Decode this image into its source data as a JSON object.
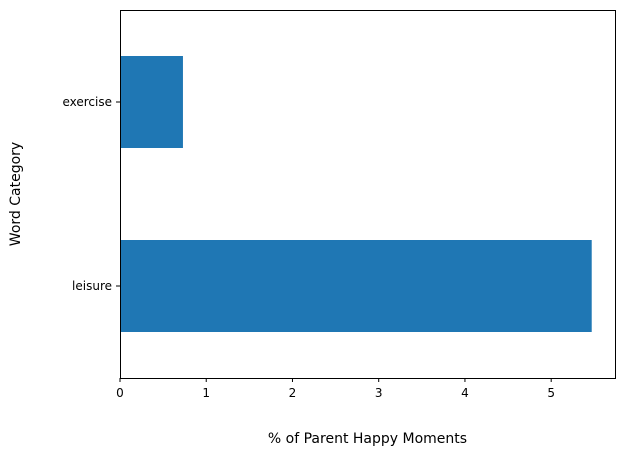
{
  "chart_data": {
    "type": "bar",
    "orientation": "horizontal",
    "categories": [
      "leisure",
      "exercise"
    ],
    "values": [
      5.47,
      0.73
    ],
    "xlabel": "% of Parent Happy Moments",
    "ylabel": "Word Category",
    "xlim": [
      0,
      5.74
    ],
    "xticks": [
      0,
      1,
      2,
      3,
      4,
      5
    ],
    "grid": false,
    "legend": "none",
    "bar_color": "#1f77b4"
  }
}
